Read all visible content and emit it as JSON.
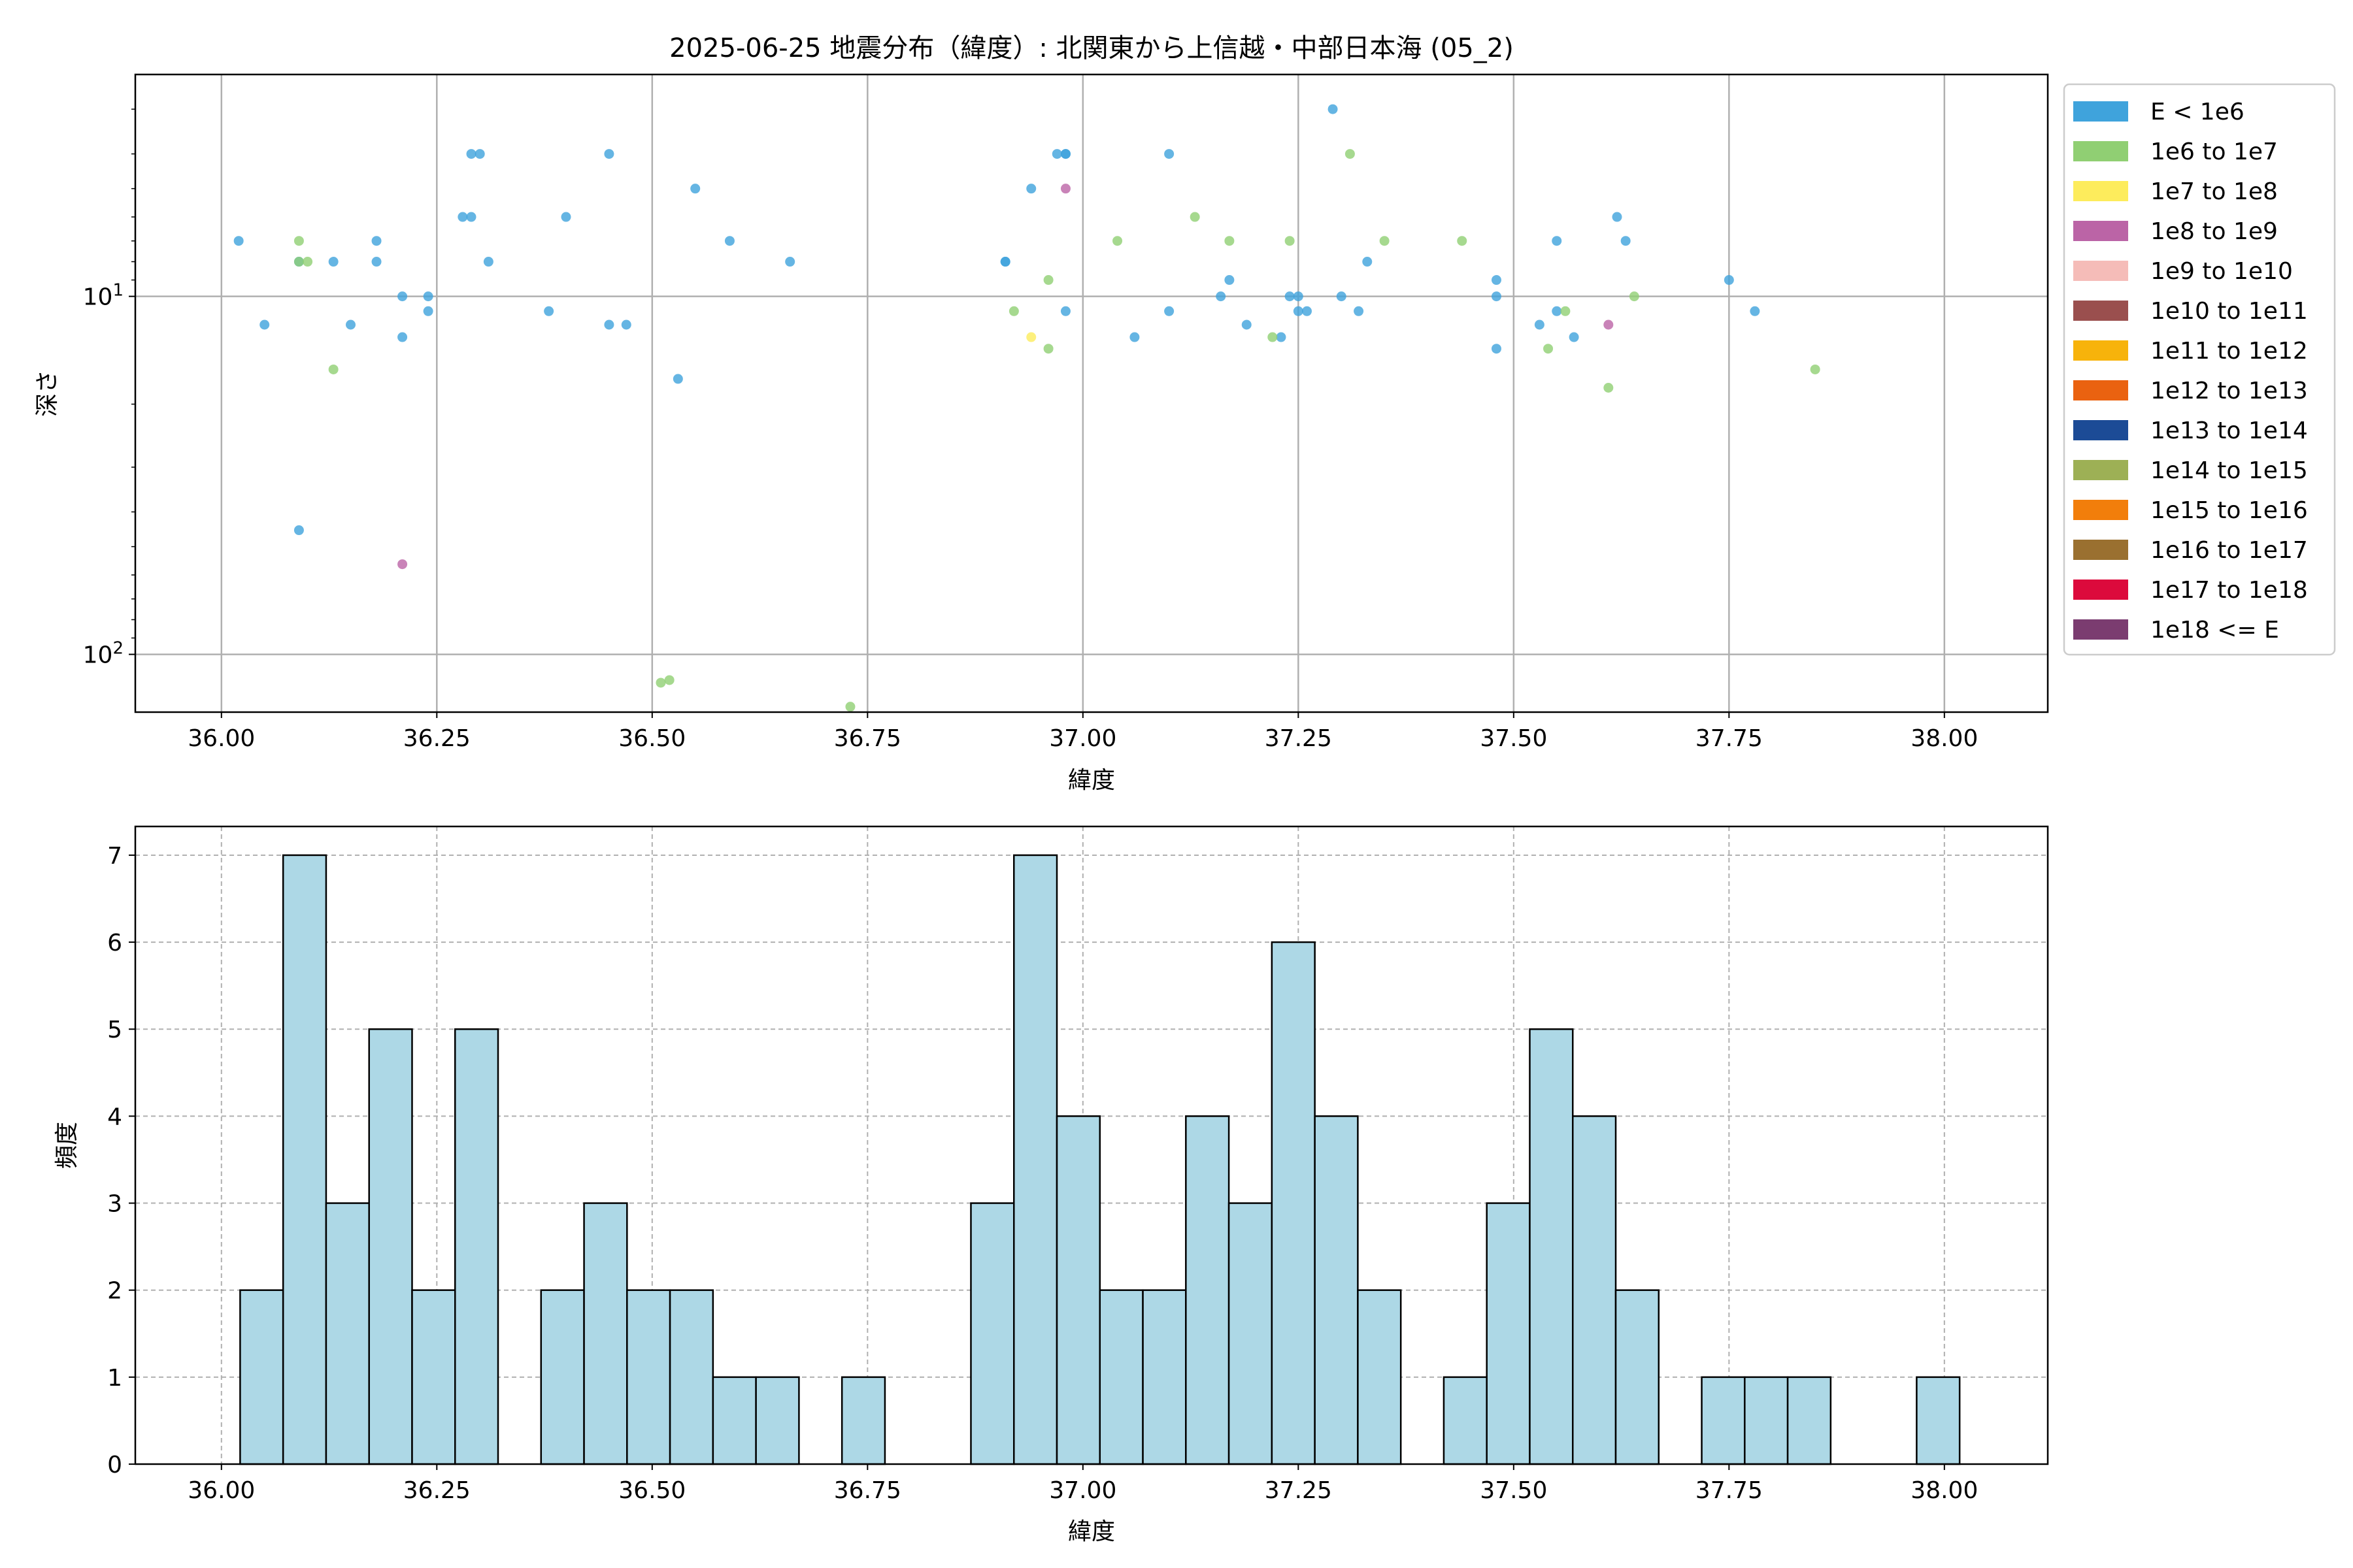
{
  "chart_data": [
    {
      "type": "scatter",
      "title": "2025-06-25 地震分布（緯度）: 北関東から上信越・中部日本海 (05_2)",
      "xlabel": "緯度",
      "ylabel": "深さ",
      "xlim": [
        35.9,
        38.12
      ],
      "ylim_log_inverted": [
        145,
        2.4
      ],
      "y_scale": "log",
      "y_inverted": true,
      "grid": true,
      "legend_position": "outside-right",
      "x_ticks": [
        "36.00",
        "36.25",
        "36.50",
        "36.75",
        "37.00",
        "37.25",
        "37.50",
        "37.75",
        "38.00"
      ],
      "y_ticks": [
        {
          "value": 10,
          "label": "10^1"
        },
        {
          "value": 100,
          "label": "10^2"
        }
      ],
      "legend": [
        {
          "label": "E < 1e6",
          "color": "#3fa3dc"
        },
        {
          "label": "1e6 to 1e7",
          "color": "#90cf73"
        },
        {
          "label": "1e7 to 1e8",
          "color": "#fdec5c"
        },
        {
          "label": "1e8 to 1e9",
          "color": "#bb64a6"
        },
        {
          "label": "1e9 to 1e10",
          "color": "#f5bcb8"
        },
        {
          "label": "1e10 to 1e11",
          "color": "#9a4f4e"
        },
        {
          "label": "1e11 to 1e12",
          "color": "#f7b30b"
        },
        {
          "label": "1e12 to 1e13",
          "color": "#ea6210"
        },
        {
          "label": "1e13 to 1e14",
          "color": "#1c4b96"
        },
        {
          "label": "1e14 to 1e15",
          "color": "#9db055"
        },
        {
          "label": "1e15 to 1e16",
          "color": "#f27e0b"
        },
        {
          "label": "1e16 to 1e17",
          "color": "#9a7030"
        },
        {
          "label": "1e17 to 1e18",
          "color": "#dc0a3c"
        },
        {
          "label": "1e18 <= E",
          "color": "#7b3c70"
        }
      ],
      "series": [
        {
          "class": 0,
          "points": [
            [
              36.02,
              7
            ],
            [
              36.05,
              12
            ],
            [
              36.09,
              8
            ],
            [
              36.09,
              45
            ],
            [
              36.13,
              8
            ],
            [
              36.15,
              12
            ],
            [
              36.18,
              8
            ],
            [
              36.18,
              7
            ],
            [
              36.21,
              10
            ],
            [
              36.21,
              13
            ],
            [
              36.24,
              10
            ],
            [
              36.24,
              11
            ],
            [
              36.28,
              6
            ],
            [
              36.29,
              6
            ],
            [
              36.29,
              4
            ],
            [
              36.3,
              4
            ],
            [
              36.31,
              8
            ],
            [
              36.38,
              11
            ],
            [
              36.4,
              6
            ],
            [
              36.45,
              4
            ],
            [
              36.45,
              12
            ],
            [
              36.47,
              12
            ],
            [
              36.53,
              17
            ],
            [
              36.55,
              5
            ],
            [
              36.59,
              7
            ],
            [
              36.66,
              8
            ],
            [
              36.91,
              8
            ],
            [
              36.91,
              8
            ],
            [
              36.94,
              5
            ],
            [
              36.97,
              4
            ],
            [
              36.98,
              4
            ],
            [
              36.98,
              11
            ],
            [
              36.98,
              4
            ],
            [
              37.06,
              13
            ],
            [
              37.1,
              11
            ],
            [
              37.1,
              4
            ],
            [
              37.16,
              10
            ],
            [
              37.17,
              9
            ],
            [
              37.19,
              12
            ],
            [
              37.23,
              13
            ],
            [
              37.24,
              10
            ],
            [
              37.25,
              11
            ],
            [
              37.25,
              10
            ],
            [
              37.26,
              11
            ],
            [
              37.29,
              3
            ],
            [
              37.3,
              10
            ],
            [
              37.32,
              11
            ],
            [
              37.33,
              8
            ],
            [
              37.48,
              9
            ],
            [
              37.48,
              10
            ],
            [
              37.48,
              14
            ],
            [
              37.53,
              12
            ],
            [
              37.55,
              11
            ],
            [
              37.55,
              7
            ],
            [
              37.57,
              13
            ],
            [
              37.62,
              6
            ],
            [
              37.63,
              7
            ],
            [
              37.75,
              9
            ],
            [
              37.78,
              11
            ]
          ]
        },
        {
          "class": 1,
          "points": [
            [
              36.09,
              7
            ],
            [
              36.09,
              8
            ],
            [
              36.1,
              8
            ],
            [
              36.13,
              16
            ],
            [
              36.51,
              120
            ],
            [
              36.52,
              118
            ],
            [
              36.73,
              140
            ],
            [
              36.92,
              11
            ],
            [
              36.96,
              9
            ],
            [
              36.96,
              14
            ],
            [
              37.04,
              7
            ],
            [
              37.13,
              6
            ],
            [
              37.17,
              7
            ],
            [
              37.22,
              13
            ],
            [
              37.24,
              7
            ],
            [
              37.31,
              4
            ],
            [
              37.35,
              7
            ],
            [
              37.44,
              7
            ],
            [
              37.54,
              14
            ],
            [
              37.56,
              11
            ],
            [
              37.61,
              18
            ],
            [
              37.64,
              10
            ],
            [
              37.85,
              16
            ]
          ]
        },
        {
          "class": 2,
          "points": [
            [
              36.94,
              13
            ]
          ]
        },
        {
          "class": 3,
          "points": [
            [
              36.21,
              56
            ],
            [
              36.98,
              5
            ],
            [
              37.61,
              12
            ]
          ]
        }
      ]
    },
    {
      "type": "bar",
      "subtype": "histogram",
      "xlabel": "緯度",
      "ylabel": "頻度",
      "xlim": [
        35.9,
        38.12
      ],
      "ylim": [
        0,
        7.33
      ],
      "grid": true,
      "bar_color": "#add8e6",
      "x_ticks": [
        "36.00",
        "36.25",
        "36.50",
        "36.75",
        "37.00",
        "37.25",
        "37.50",
        "37.75",
        "38.00"
      ],
      "y_ticks": [
        "0",
        "1",
        "2",
        "3",
        "4",
        "5",
        "6",
        "7"
      ],
      "bin_start": 36.0217,
      "bin_width": 0.0499,
      "counts": [
        2,
        7,
        3,
        5,
        2,
        5,
        0,
        2,
        3,
        2,
        2,
        1,
        1,
        0,
        1,
        0,
        0,
        3,
        7,
        4,
        2,
        2,
        4,
        3,
        6,
        4,
        2,
        0,
        1,
        3,
        5,
        4,
        2,
        0,
        1,
        1,
        1,
        0,
        0,
        1
      ]
    }
  ]
}
